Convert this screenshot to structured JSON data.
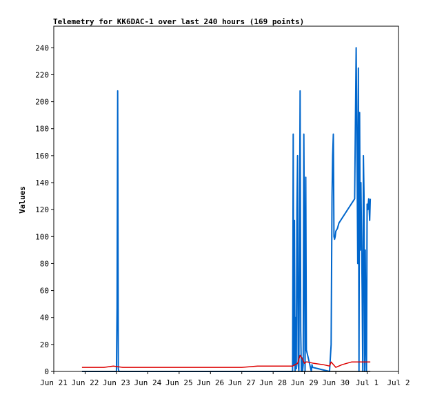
{
  "chart_data": {
    "type": "line",
    "title": "Telemetry for KK6DAC-1 over last 240 hours (169 points)",
    "xlabel": "",
    "ylabel": "Values",
    "xlim": [
      0,
      11
    ],
    "ylim": [
      0,
      256
    ],
    "x_tick_values": [
      0,
      1,
      2,
      3,
      4,
      5,
      6,
      7,
      8,
      9,
      10,
      11
    ],
    "x_tick_labels": [
      "Jun 21",
      "Jun 22",
      "Jun 23",
      "Jun 24",
      "Jun 25",
      "Jun 26",
      "Jun 27",
      "Jun 28",
      "Jun 29",
      "Jun 30",
      "Jul 1",
      "Jul 2"
    ],
    "y_ticks": [
      0,
      20,
      40,
      60,
      80,
      100,
      120,
      140,
      160,
      180,
      200,
      220,
      240
    ],
    "grid": false,
    "series": [
      {
        "color": "#0066cc",
        "x": [
          0.9,
          1.5,
          2.0,
          2.02,
          2.04,
          2.06,
          2.08,
          2.3,
          3.0,
          4.0,
          5.0,
          6.0,
          7.0,
          7.62,
          7.64,
          7.66,
          7.68,
          7.7,
          7.72,
          7.74,
          7.76,
          7.78,
          7.8,
          7.82,
          7.84,
          7.86,
          7.88,
          7.9,
          7.92,
          7.94,
          7.96,
          7.98,
          8.0,
          8.02,
          8.04,
          8.06,
          8.08,
          8.1,
          8.12,
          8.14,
          8.16,
          8.18,
          8.2,
          8.22,
          8.24,
          8.26,
          8.8,
          8.85,
          8.88,
          8.9,
          8.92,
          8.94,
          8.96,
          8.98,
          9.0,
          9.05,
          9.1,
          9.6,
          9.65,
          9.68,
          9.7,
          9.72,
          9.74,
          9.76,
          9.78,
          9.8,
          9.82,
          9.84,
          9.86,
          9.88,
          9.9,
          9.92,
          9.94,
          9.96,
          9.98,
          10.0,
          10.02,
          10.05,
          10.08,
          10.1
        ],
        "values": [
          0,
          0,
          0,
          48,
          208,
          2,
          0,
          0,
          0,
          0,
          0,
          0,
          0,
          0,
          176,
          5,
          112,
          0,
          40,
          2,
          120,
          160,
          5,
          0,
          100,
          208,
          30,
          0,
          10,
          0,
          5,
          176,
          100,
          0,
          144,
          16,
          14,
          12,
          10,
          8,
          6,
          4,
          2,
          0,
          5,
          3,
          0,
          20,
          130,
          160,
          176,
          100,
          98,
          100,
          104,
          106,
          110,
          128,
          240,
          150,
          80,
          225,
          0,
          192,
          90,
          140,
          100,
          60,
          0,
          160,
          130,
          0,
          90,
          20,
          0,
          124,
          120,
          128,
          112,
          128
        ]
      },
      {
        "color": "#dd0000",
        "x": [
          0.9,
          1.0,
          1.3,
          1.6,
          1.9,
          2.2,
          2.5,
          3.0,
          3.5,
          4.0,
          4.5,
          5.0,
          5.5,
          6.0,
          6.5,
          7.0,
          7.5,
          7.62,
          7.7,
          7.78,
          7.86,
          7.94,
          8.0,
          8.05,
          8.1,
          8.3,
          8.6,
          8.8,
          8.85,
          9.0,
          9.2,
          9.5,
          9.7,
          9.8,
          9.9,
          10.0,
          10.1
        ],
        "values": [
          3,
          3,
          3,
          3,
          4,
          3,
          3,
          3,
          3,
          3,
          3,
          3,
          3,
          3,
          4,
          4,
          4,
          4,
          5,
          6,
          12,
          9,
          6,
          7,
          7,
          6,
          5,
          4,
          7,
          3,
          5,
          7,
          7,
          7,
          7,
          7,
          7
        ]
      },
      {
        "color": "#000000",
        "x": [
          0.9,
          1.5,
          2.0,
          3.0,
          4.0,
          5.0,
          6.0,
          7.0,
          7.62,
          8.0,
          9.0,
          10.0,
          10.1
        ],
        "values": [
          0,
          0,
          0,
          0,
          0,
          0,
          0,
          0,
          0,
          0,
          0,
          0,
          0
        ]
      }
    ]
  }
}
